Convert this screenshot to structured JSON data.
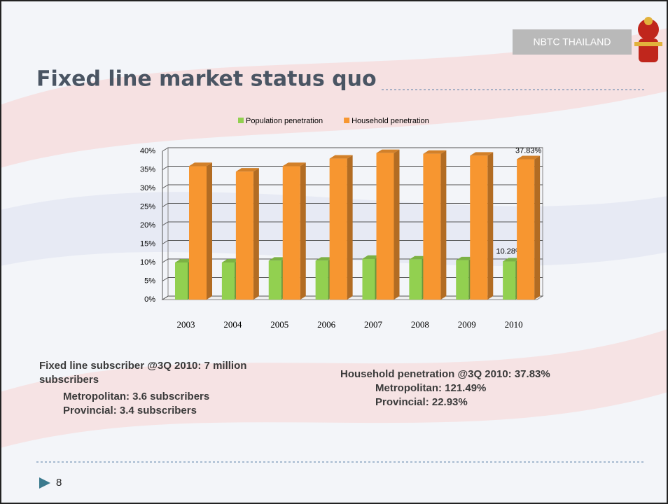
{
  "header": {
    "badge": "NBTC THAILAND",
    "title": "Fixed line market status quo"
  },
  "chart_data": {
    "type": "bar3d",
    "categories": [
      "2003",
      "2004",
      "2005",
      "2006",
      "2007",
      "2008",
      "2009",
      "2010"
    ],
    "series": [
      {
        "name": "Population penetration",
        "color": "#92d050",
        "values": [
          10.0,
          10.0,
          10.5,
          10.5,
          11.0,
          10.8,
          10.6,
          10.28
        ],
        "value_labels": [
          null,
          null,
          null,
          null,
          null,
          null,
          null,
          "10.28%"
        ]
      },
      {
        "name": "Household penetration",
        "color": "#f79630",
        "values": [
          36.0,
          34.5,
          36.0,
          38.0,
          39.5,
          39.3,
          38.8,
          37.83
        ],
        "value_labels": [
          null,
          null,
          null,
          null,
          null,
          null,
          null,
          "37.83%"
        ]
      }
    ],
    "ylim": [
      0,
      40
    ],
    "yticks": [
      {
        "value": 0,
        "label": "0%"
      },
      {
        "value": 5,
        "label": "5%"
      },
      {
        "value": 10,
        "label": "10%"
      },
      {
        "value": 15,
        "label": "15%"
      },
      {
        "value": 20,
        "label": "20%"
      },
      {
        "value": 25,
        "label": "25%"
      },
      {
        "value": 30,
        "label": "30%"
      },
      {
        "value": 35,
        "label": "35%"
      },
      {
        "value": 40,
        "label": "40%"
      }
    ],
    "grid": true,
    "legend": "top"
  },
  "notes": {
    "left": [
      "Fixed line subscriber @3Q 2010: 7 million",
      "subscribers",
      "Metropolitan: 3.6 subscribers",
      "Provincial: 3.4 subscribers"
    ],
    "right": [
      "Household penetration @3Q 2010: 37.83%",
      "Metropolitan: 121.49%",
      "Provincial: 22.93%"
    ]
  },
  "footer": {
    "page": "8"
  }
}
